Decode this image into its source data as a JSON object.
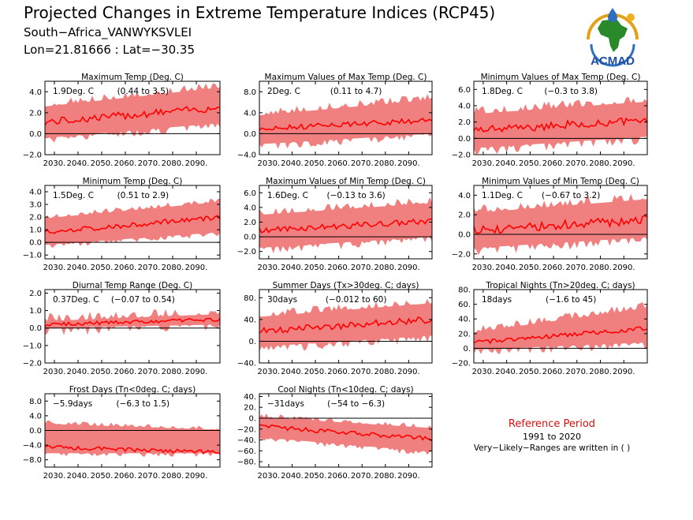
{
  "header": {
    "title": "Projected Changes in Extreme Temperature Indices (RCP45)",
    "station": "South−Africa_VANWYKSVLEI",
    "coords": "Lon=21.81666 : Lat=−30.35"
  },
  "logo": {
    "text": "ACMAD",
    "icon": "africa-globe-logo"
  },
  "reference": {
    "title": "Reference Period",
    "years": "1991 to 2020",
    "note": "Very−Likely−Ranges are written in ( )"
  },
  "colors": {
    "band": "#f08080",
    "line": "#ff0000",
    "reference_title": "#d81010"
  },
  "chart_data": [
    {
      "type": "area",
      "title": "Maximum Temp (Deg. C)",
      "change_label": "1.9Deg. C",
      "range_label": "(0.44 to 3.5)",
      "x_ticks": [
        "2030.",
        "2040.",
        "2050.",
        "2060.",
        "2070.",
        "2080.",
        "2090."
      ],
      "xlim": [
        2026,
        2100
      ],
      "ylim": [
        -2,
        5
      ],
      "y_ticks": [
        -2,
        0,
        2,
        4
      ],
      "y_tick_labels": [
        "−2.0",
        "0.0",
        "2.0",
        "4.0"
      ],
      "series": [
        {
          "start": 2026,
          "end": 2100,
          "median_start": 1.1,
          "median_end": 2.5,
          "lower_start": -0.4,
          "lower_end": 1.0,
          "upper_start": 2.6,
          "upper_end": 4.4,
          "noise": 0.35,
          "band_noise": 0.6
        }
      ]
    },
    {
      "type": "area",
      "title": "Maximum Values of Max Temp (Deg. C)",
      "change_label": "2Deg. C",
      "range_label": "(0.11 to 4.7)",
      "x_ticks": [
        "2030.",
        "2040.",
        "2050.",
        "2060.",
        "2070.",
        "2080.",
        "2090."
      ],
      "xlim": [
        2026,
        2100
      ],
      "ylim": [
        -4,
        10
      ],
      "y_ticks": [
        -4,
        0,
        4,
        8
      ],
      "y_tick_labels": [
        "−4.0",
        "0.0",
        "4.0",
        "8.0"
      ],
      "series": [
        {
          "start": 2026,
          "end": 2100,
          "median_start": 0.9,
          "median_end": 2.6,
          "lower_start": -2.0,
          "lower_end": 0.0,
          "upper_start": 3.5,
          "upper_end": 6.5,
          "noise": 0.5,
          "band_noise": 1.2
        }
      ]
    },
    {
      "type": "area",
      "title": "Minimum Values of Max Temp (Deg. C)",
      "change_label": "1.8Deg. C",
      "range_label": "(−0.3 to 3.8)",
      "x_ticks": [
        "2030.",
        "2040.",
        "2050.",
        "2060.",
        "2070.",
        "2080.",
        "2090."
      ],
      "xlim": [
        2026,
        2100
      ],
      "ylim": [
        -2,
        7
      ],
      "y_ticks": [
        -2,
        0,
        2,
        4,
        6
      ],
      "y_tick_labels": [
        "−2.0",
        "0.0",
        "2.0",
        "4.0",
        "6.0"
      ],
      "series": [
        {
          "start": 2026,
          "end": 2100,
          "median_start": 1.0,
          "median_end": 2.2,
          "lower_start": -1.2,
          "lower_end": 0.2,
          "upper_start": 3.0,
          "upper_end": 4.5,
          "noise": 0.5,
          "band_noise": 0.9
        }
      ]
    },
    {
      "type": "area",
      "title": "Minimum Temp (Deg. C)",
      "change_label": "1.5Deg. C",
      "range_label": "(0.51 to 2.9)",
      "x_ticks": [
        "2030.",
        "2040.",
        "2050.",
        "2060.",
        "2070.",
        "2080.",
        "2090."
      ],
      "xlim": [
        2026,
        2100
      ],
      "ylim": [
        -1.3,
        4.5
      ],
      "y_ticks": [
        -1,
        0,
        1,
        2,
        3,
        4
      ],
      "y_tick_labels": [
        "−1.0",
        "0.0",
        "1.0",
        "2.0",
        "3.0",
        "4.0"
      ],
      "series": [
        {
          "start": 2026,
          "end": 2100,
          "median_start": 0.8,
          "median_end": 2.0,
          "lower_start": -0.2,
          "lower_end": 0.8,
          "upper_start": 1.9,
          "upper_end": 3.2,
          "noise": 0.2,
          "band_noise": 0.35
        }
      ]
    },
    {
      "type": "area",
      "title": "Maximum Values of Min Temp (Deg. C)",
      "change_label": "1.6Deg. C",
      "range_label": "(−0.13 to 3.6)",
      "x_ticks": [
        "2030.",
        "2040.",
        "2050.",
        "2060.",
        "2070.",
        "2080.",
        "2090."
      ],
      "xlim": [
        2026,
        2100
      ],
      "ylim": [
        -3,
        7
      ],
      "y_ticks": [
        -2,
        0,
        2,
        4,
        6
      ],
      "y_tick_labels": [
        "−2.0",
        "0.0",
        "2.0",
        "4.0",
        "6.0"
      ],
      "series": [
        {
          "start": 2026,
          "end": 2100,
          "median_start": 0.9,
          "median_end": 2.1,
          "lower_start": -1.5,
          "lower_end": 0.0,
          "upper_start": 3.0,
          "upper_end": 4.6,
          "noise": 0.4,
          "band_noise": 0.9
        }
      ]
    },
    {
      "type": "area",
      "title": "Minimum Values of Min Temp (Deg. C)",
      "change_label": "1.1Deg. C",
      "range_label": "(−0.67 to 3.2)",
      "x_ticks": [
        "2030.",
        "2040.",
        "2050.",
        "2060.",
        "2070.",
        "2080.",
        "2090."
      ],
      "xlim": [
        2026,
        2100
      ],
      "ylim": [
        -2.5,
        5
      ],
      "y_ticks": [
        -2,
        0,
        2,
        4
      ],
      "y_tick_labels": [
        "−2.0",
        "0.0",
        "2.0",
        "4.0"
      ],
      "series": [
        {
          "start": 2026,
          "end": 2100,
          "median_start": 0.4,
          "median_end": 1.5,
          "lower_start": -1.4,
          "lower_end": -0.3,
          "upper_start": 2.2,
          "upper_end": 3.6,
          "noise": 0.45,
          "band_noise": 0.8
        }
      ]
    },
    {
      "type": "area",
      "title": "Diurnal Temp Range (Deg. C)",
      "change_label": "0.37Deg. C",
      "range_label": "(−0.07 to 0.54)",
      "x_ticks": [
        "2030.",
        "2040.",
        "2050.",
        "2060.",
        "2070.",
        "2080.",
        "2090."
      ],
      "xlim": [
        2026,
        2100
      ],
      "ylim": [
        -2,
        2.2
      ],
      "y_ticks": [
        -2,
        -1,
        0,
        1,
        2
      ],
      "y_tick_labels": [
        "−2.0",
        "−1.0",
        "0.0",
        "1.0",
        "2.0"
      ],
      "series": [
        {
          "start": 2026,
          "end": 2100,
          "median_start": 0.2,
          "median_end": 0.5,
          "lower_start": 0.0,
          "lower_end": 0.2,
          "upper_start": 0.4,
          "upper_end": 0.8,
          "noise": 0.1,
          "band_noise": 0.45
        }
      ]
    },
    {
      "type": "area",
      "title": "Summer Days (Tx>30deg. C; days)",
      "change_label": "30days",
      "range_label": "(−0.012 to 60)",
      "x_ticks": [
        "2030.",
        "2040.",
        "2050.",
        "2060.",
        "2070.",
        "2080.",
        "2090."
      ],
      "xlim": [
        2026,
        2100
      ],
      "ylim": [
        -40,
        95
      ],
      "y_ticks": [
        -40,
        0,
        40,
        80
      ],
      "y_tick_labels": [
        "−40.",
        "0.",
        "40.",
        "80."
      ],
      "series": [
        {
          "start": 2026,
          "end": 2100,
          "median_start": 18,
          "median_end": 40,
          "lower_start": -10,
          "lower_end": 10,
          "upper_start": 45,
          "upper_end": 70,
          "noise": 6,
          "band_noise": 12
        }
      ]
    },
    {
      "type": "area",
      "title": "Tropical Nights (Tn>20deg. C; days)",
      "change_label": "18days",
      "range_label": "(−1.6 to 45)",
      "x_ticks": [
        "2030.",
        "2040.",
        "2050.",
        "2060.",
        "2070.",
        "2080.",
        "2090."
      ],
      "xlim": [
        2026,
        2100
      ],
      "ylim": [
        -20,
        80
      ],
      "y_ticks": [
        -20,
        0,
        20,
        40,
        60,
        80
      ],
      "y_tick_labels": [
        "−20.",
        "0.",
        "20.",
        "40.",
        "60.",
        "80."
      ],
      "series": [
        {
          "start": 2026,
          "end": 2100,
          "median_start": 8,
          "median_end": 27,
          "lower_start": -2,
          "lower_end": 8,
          "upper_start": 22,
          "upper_end": 55,
          "noise": 3,
          "band_noise": 9
        }
      ]
    },
    {
      "type": "area",
      "title": "Frost Days (Tn<0deg. C; days)",
      "change_label": "−5.9days",
      "range_label": "(−6.3 to 1.5)",
      "x_ticks": [
        "2030.",
        "2040.",
        "2050.",
        "2060.",
        "2070.",
        "2080.",
        "2090."
      ],
      "xlim": [
        2026,
        2100
      ],
      "ylim": [
        -10,
        10
      ],
      "y_ticks": [
        -8,
        -4,
        0,
        4,
        8
      ],
      "y_tick_labels": [
        "−8.0",
        "−4.0",
        "0.0",
        "4.0",
        "8.0"
      ],
      "series": [
        {
          "start": 2026,
          "end": 2100,
          "median_start": -4.5,
          "median_end": -6.0,
          "lower_start": -6.2,
          "lower_end": -6.2,
          "upper_start": 1.8,
          "upper_end": 0.2,
          "noise": 0.5,
          "band_noise": 1.0
        }
      ]
    },
    {
      "type": "area",
      "title": "Cool Nights (Tn<10deg. C; days)",
      "change_label": "−31days",
      "range_label": "(−54 to −6.3)",
      "x_ticks": [
        "2030.",
        "2040.",
        "2050.",
        "2060.",
        "2070.",
        "2080.",
        "2090."
      ],
      "xlim": [
        2026,
        2100
      ],
      "ylim": [
        -90,
        45
      ],
      "y_ticks": [
        -80,
        -60,
        -40,
        -20,
        0,
        20,
        40
      ],
      "y_tick_labels": [
        "−80.",
        "−60.",
        "−40.",
        "−20.",
        "0.",
        "20.",
        "40."
      ],
      "series": [
        {
          "start": 2026,
          "end": 2100,
          "median_start": -15,
          "median_end": -38,
          "lower_start": -35,
          "lower_end": -62,
          "upper_start": 2,
          "upper_end": -18,
          "noise": 4,
          "band_noise": 8
        }
      ]
    }
  ]
}
